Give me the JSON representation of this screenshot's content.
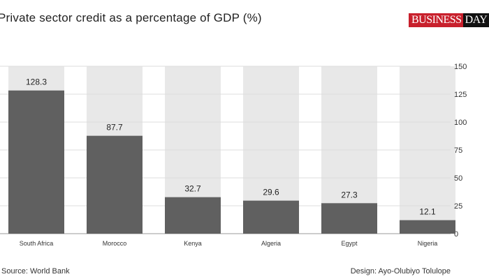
{
  "chart_data": {
    "type": "bar",
    "title": "Private sector credit as a percentage of GDP (%)",
    "categories": [
      "South Africa",
      "Morocco",
      "Kenya",
      "Algeria",
      "Egypt",
      "Nigeria"
    ],
    "values": [
      128.3,
      87.7,
      32.7,
      29.6,
      27.3,
      12.1
    ],
    "value_labels": [
      "128.3",
      "87.7",
      "32.7",
      "29.6",
      "27.3",
      "12.1"
    ],
    "ylim": [
      0,
      150
    ],
    "yticks": [
      0,
      25,
      50,
      75,
      100,
      125,
      150
    ],
    "y_axis_position": "right",
    "grid": true,
    "bar_color": "#606060",
    "background_bar_color": "#e8e8e8"
  },
  "logo": {
    "part1": "BUSINESS",
    "part2": "DAY",
    "color1": "#c8202c",
    "color2": "#111111"
  },
  "footer": {
    "source": "Source: World Bank",
    "design": "Design: Ayo-Olubiyo Tolulope"
  }
}
